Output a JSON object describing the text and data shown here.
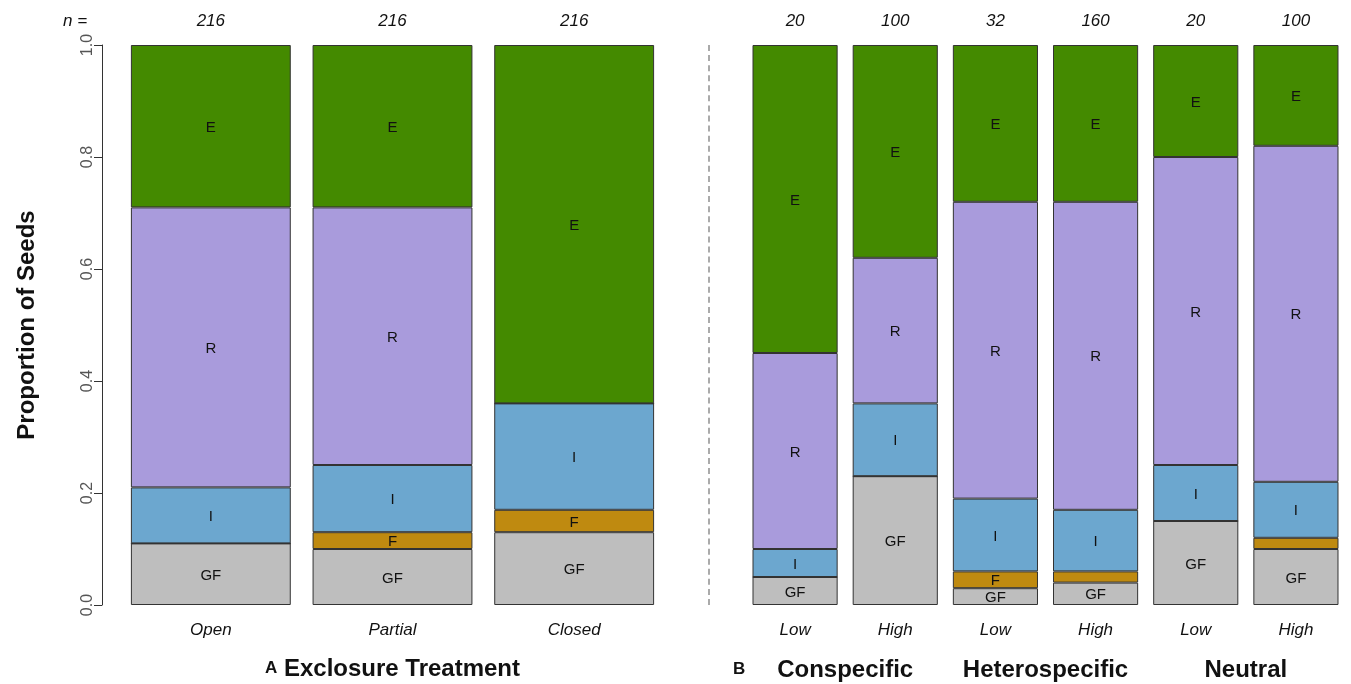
{
  "chart_data": [
    {
      "type": "bar",
      "stacked": true,
      "xlabel": "Exclosure Treatment",
      "ylabel": "Proportion of Seeds",
      "categories": [
        "Open",
        "Partial",
        "Closed"
      ],
      "series": [
        {
          "name": "GF",
          "color": "#bebebe",
          "values": [
            0.11,
            0.1,
            0.13
          ]
        },
        {
          "name": "F",
          "color": "#bf8a10",
          "values": [
            0,
            0.03,
            0.04
          ]
        },
        {
          "name": "I",
          "color": "#6ca7cf",
          "values": [
            0.1,
            0.12,
            0.19
          ]
        },
        {
          "name": "R",
          "color": "#a99bdc",
          "values": [
            0.5,
            0.46,
            0
          ]
        },
        {
          "name": "E",
          "color": "#448a00",
          "values": [
            0.29,
            0.29,
            0.64
          ]
        }
      ],
      "ylim": [
        0,
        1
      ],
      "yticks": [
        {
          "value": 0,
          "label": "0.0"
        },
        {
          "value": 0.2,
          "label": "0.2"
        },
        {
          "value": 0.4,
          "label": "0.4"
        },
        {
          "value": 0.6,
          "label": "0.6"
        },
        {
          "value": 0.8,
          "label": "0.8"
        },
        {
          "value": 1,
          "label": "1.0"
        }
      ],
      "grid": false,
      "legend": false,
      "annotations": [
        "n =",
        "216",
        "216",
        "216",
        "A"
      ]
    },
    {
      "type": "bar",
      "stacked": true,
      "categories": [
        "Low",
        "High",
        "Low",
        "High",
        "Low",
        "High"
      ],
      "series": [
        {
          "name": "GF",
          "color": "#bebebe",
          "values": [
            0.05,
            0.23,
            0.03,
            0.04,
            0.15,
            0.1
          ]
        },
        {
          "name": "F",
          "color": "#bf8a10",
          "values": [
            0,
            0,
            0.03,
            0.02,
            0,
            0.02
          ]
        },
        {
          "name": "I",
          "color": "#6ca7cf",
          "values": [
            0.05,
            0.13,
            0.13,
            0.11,
            0.1,
            0.1
          ]
        },
        {
          "name": "R",
          "color": "#a99bdc",
          "values": [
            0.35,
            0.26,
            0.53,
            0.55,
            0.55,
            0.6
          ]
        },
        {
          "name": "E",
          "color": "#448a00",
          "values": [
            0.55,
            0.38,
            0.28,
            0.28,
            0.2,
            0.18
          ]
        }
      ],
      "ylim": [
        0,
        1
      ],
      "tick_labels": "x",
      "grid": false,
      "legend": false,
      "annotations": [
        "20",
        "100",
        "32",
        "160",
        "20",
        "100",
        "B",
        "Conspecific",
        "Heterospecific",
        "Neutral"
      ]
    }
  ]
}
